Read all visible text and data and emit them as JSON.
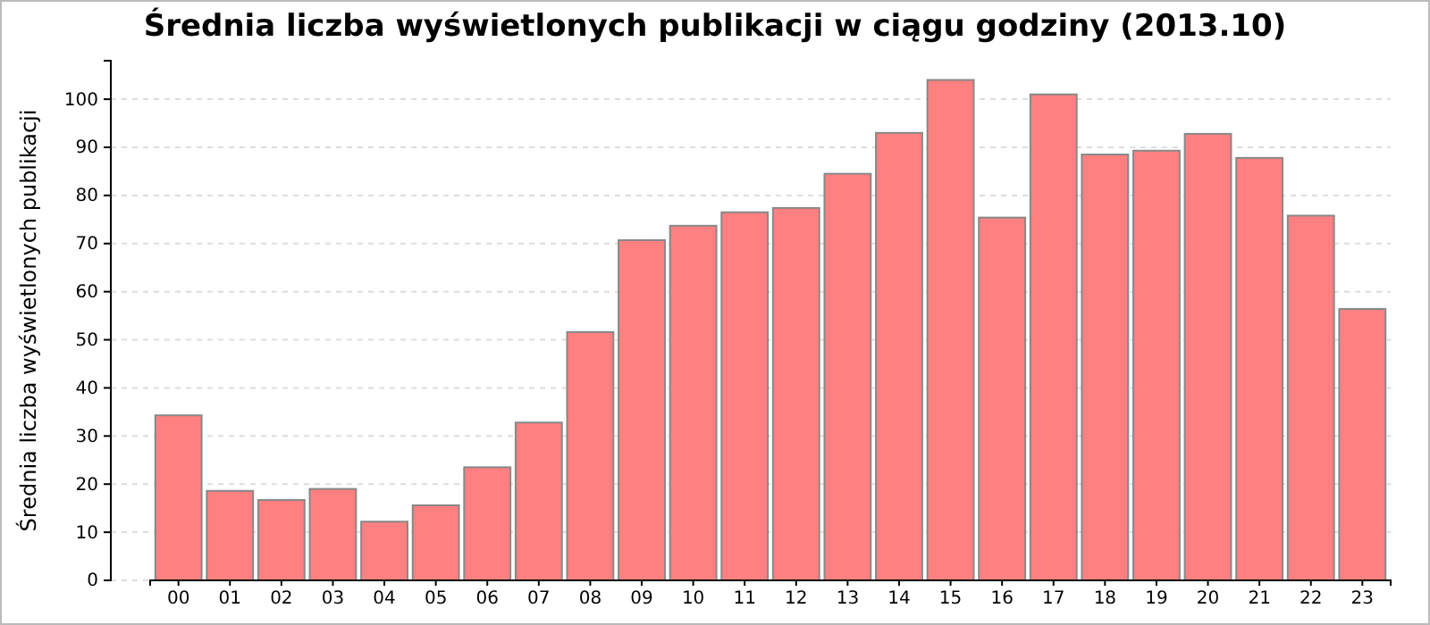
{
  "chart_data": {
    "type": "bar",
    "title": "Średnia liczba wyświetlonych publikacji w ciągu godziny (2013.10)",
    "ylabel": "Średnia liczba wyświetlonych publikacji",
    "categories": [
      "00",
      "01",
      "02",
      "03",
      "04",
      "05",
      "06",
      "07",
      "08",
      "09",
      "10",
      "11",
      "12",
      "13",
      "14",
      "15",
      "16",
      "17",
      "18",
      "19",
      "20",
      "21",
      "22",
      "23"
    ],
    "values": [
      34.3,
      18.6,
      16.7,
      19.0,
      12.2,
      15.6,
      23.5,
      32.8,
      51.6,
      70.7,
      73.7,
      76.5,
      77.4,
      84.5,
      93.0,
      104.0,
      75.4,
      101.0,
      88.5,
      89.3,
      92.8,
      87.8,
      75.8,
      56.4
    ],
    "color": "#ff8080",
    "ylim": [
      0,
      108
    ],
    "yticks": [
      0,
      10,
      20,
      30,
      40,
      50,
      60,
      70,
      80,
      90,
      100
    ],
    "grid": "y"
  }
}
